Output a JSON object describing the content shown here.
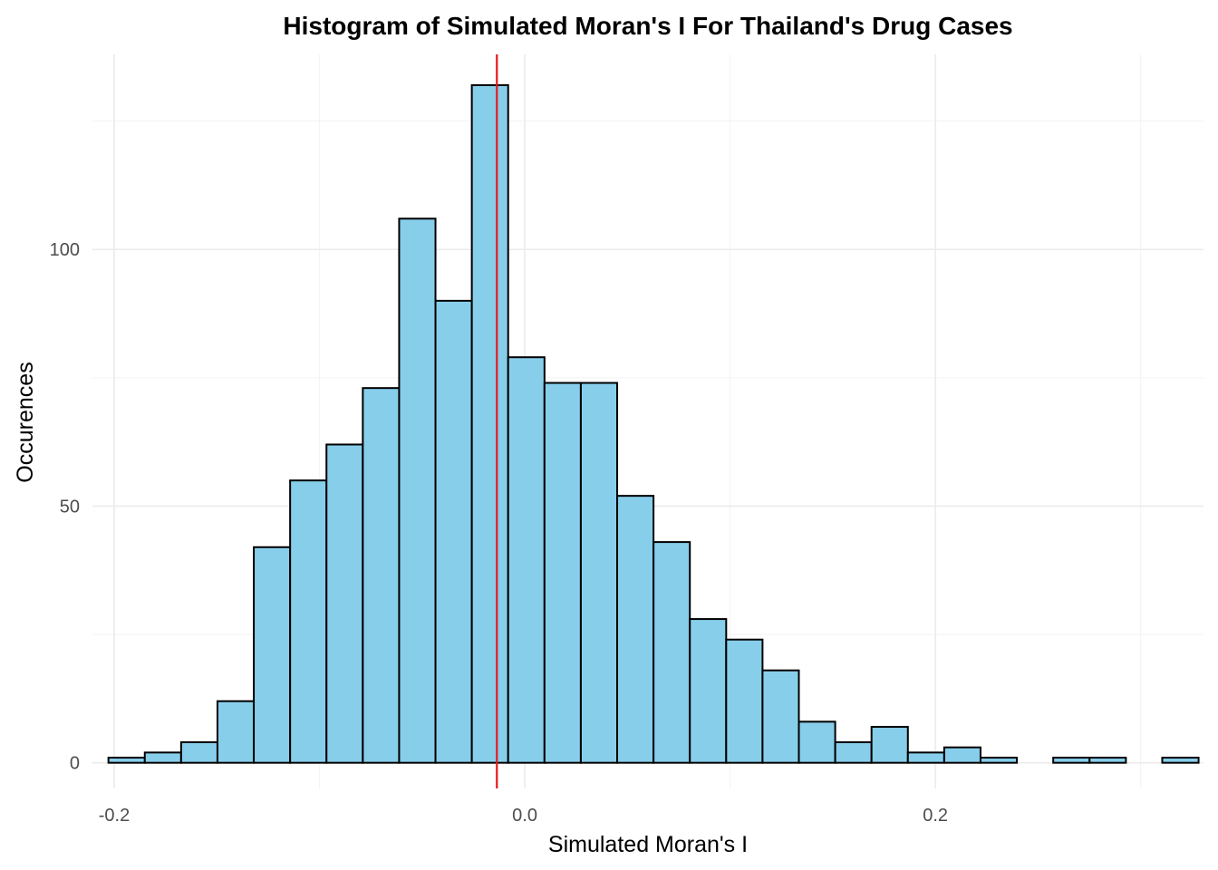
{
  "chart_data": {
    "type": "bar",
    "title": "Histogram of Simulated Moran's I For Thailand's Drug Cases",
    "xlabel": "Simulated Moran's I",
    "ylabel": "Occurences",
    "xlim": [
      -0.2106,
      0.3306
    ],
    "ylim": [
      -5,
      138
    ],
    "x_ticks": [
      {
        "value": -0.2,
        "label": "-0.2"
      },
      {
        "value": 0.0,
        "label": "0.0"
      },
      {
        "value": 0.2,
        "label": "0.2"
      }
    ],
    "y_ticks": [
      {
        "value": 0,
        "label": "0"
      },
      {
        "value": 50,
        "label": "50"
      },
      {
        "value": 100,
        "label": "100"
      }
    ],
    "bin_width": 0.0177,
    "bins": [
      {
        "start": -0.2028,
        "count": 1
      },
      {
        "start": -0.1851,
        "count": 2
      },
      {
        "start": -0.1674,
        "count": 4
      },
      {
        "start": -0.1497,
        "count": 12
      },
      {
        "start": -0.132,
        "count": 42
      },
      {
        "start": -0.1143,
        "count": 55
      },
      {
        "start": -0.0966,
        "count": 62
      },
      {
        "start": -0.0789,
        "count": 73
      },
      {
        "start": -0.0612,
        "count": 106
      },
      {
        "start": -0.0435,
        "count": 90
      },
      {
        "start": -0.0258,
        "count": 132
      },
      {
        "start": -0.0081,
        "count": 79
      },
      {
        "start": 0.0096,
        "count": 74
      },
      {
        "start": 0.0273,
        "count": 74
      },
      {
        "start": 0.045,
        "count": 52
      },
      {
        "start": 0.0627,
        "count": 43
      },
      {
        "start": 0.0804,
        "count": 28
      },
      {
        "start": 0.0981,
        "count": 24
      },
      {
        "start": 0.1158,
        "count": 18
      },
      {
        "start": 0.1335,
        "count": 8
      },
      {
        "start": 0.1512,
        "count": 4
      },
      {
        "start": 0.1689,
        "count": 7
      },
      {
        "start": 0.1866,
        "count": 2
      },
      {
        "start": 0.2043,
        "count": 3
      },
      {
        "start": 0.222,
        "count": 1
      },
      {
        "start": 0.2397,
        "count": 0
      },
      {
        "start": 0.2574,
        "count": 1
      },
      {
        "start": 0.2751,
        "count": 1
      },
      {
        "start": 0.2928,
        "count": 0
      },
      {
        "start": 0.3105,
        "count": 1
      }
    ],
    "reference_line": {
      "x": -0.0136,
      "color": "#e41a1c"
    },
    "bar_fill": "#87ceeb",
    "bar_outline": "#000000",
    "grid": true,
    "legend": "none"
  }
}
